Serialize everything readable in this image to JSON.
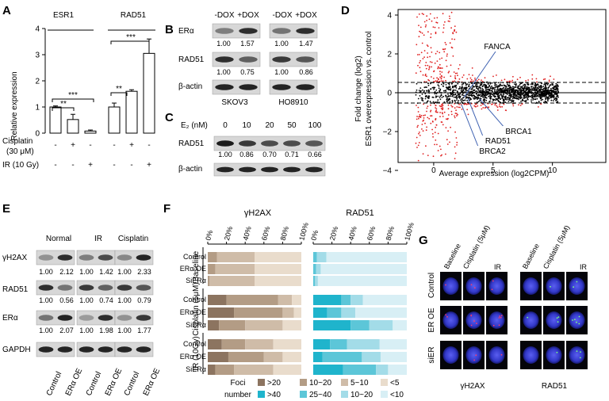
{
  "panel_letters": {
    "a": "A",
    "b": "B",
    "c": "C",
    "d": "D",
    "e": "E",
    "f": "F",
    "g": "G"
  },
  "panel_a": {
    "ylabel": "Relative expression",
    "groups": [
      "ESR1",
      "RAD51"
    ],
    "ticks": [
      "0",
      "1",
      "2",
      "3",
      "4"
    ],
    "row_labels": [
      "Cisplatin",
      "(30 μM)",
      "IR (10 Gy)"
    ],
    "cisplatin_signs": [
      "-",
      "+",
      "-",
      "-",
      "+",
      "-"
    ],
    "ir_signs": [
      "-",
      "-",
      "+",
      "-",
      "-",
      "+"
    ],
    "sig": [
      "**",
      "***",
      "**",
      "***"
    ]
  },
  "panel_b": {
    "conditions": [
      "-DOX",
      "+DOX",
      "-DOX",
      "+DOX"
    ],
    "rows": [
      "ERα",
      "RAD51",
      "β-actin"
    ],
    "era_values": [
      "1.00",
      "1.57",
      "1.00",
      "1.47"
    ],
    "rad51_values": [
      "1.00",
      "0.75",
      "1.00",
      "0.86"
    ],
    "cell_lines": [
      "SKOV3",
      "HO8910"
    ]
  },
  "panel_c": {
    "header": "E₂ (nM)",
    "doses": [
      "0",
      "10",
      "20",
      "50",
      "100"
    ],
    "rows": [
      "RAD51",
      "β-actin"
    ],
    "values": [
      "1.00",
      "0.86",
      "0.70",
      "0.71",
      "0.66"
    ]
  },
  "panel_d": {
    "ylabel1": "Fold change (log2)",
    "ylabel2": "ESR1 overexpression vs. control",
    "xlabel": "Average expression (log2CPM)",
    "xticks": [
      "0",
      "5",
      "10"
    ],
    "yticks": [
      "4",
      "2",
      "0",
      "−2",
      "−4"
    ],
    "genes": [
      "FANCA",
      "BRCA1",
      "RAD51",
      "BRCA2"
    ]
  },
  "panel_e": {
    "groups": [
      "Normal",
      "IR",
      "Cisplatin"
    ],
    "rows": [
      "γH2AX",
      "RAD51",
      "ERα",
      "GAPDH"
    ],
    "h2ax_values": [
      "1.00",
      "2.12",
      "1.00",
      "1.42",
      "1.00",
      "2.33"
    ],
    "rad51_values": [
      "1.00",
      "0.56",
      "1.00",
      "0.74",
      "1.00",
      "0.79"
    ],
    "era_values": [
      "1.00",
      "2.07",
      "1.00",
      "1.98",
      "1.00",
      "1.77"
    ],
    "xlabels": [
      "Control",
      "ERα OE",
      "Control",
      "ERα OE",
      "Control",
      "ERα OE"
    ]
  },
  "panel_f": {
    "titles": [
      "γH2AX",
      "RAD51"
    ],
    "ticks": [
      "0%",
      "20%",
      "40%",
      "60%",
      "80%",
      "100%"
    ],
    "row_labels": [
      "Control",
      "ERα OE",
      "SiERα",
      "Control",
      "ERα OE",
      "SiERα",
      "Control",
      "ERα OE",
      "SiERα"
    ],
    "group_labels": [
      "Baseline",
      "Cisplatin (5μM)",
      "IR (10Gy)"
    ],
    "legend_title": [
      "Foci",
      "number"
    ],
    "legend_h2ax": [
      ">20",
      "10~20",
      "5~10",
      "<5"
    ],
    "legend_rad51": [
      ">40",
      "25~40",
      "10~20",
      "<10"
    ],
    "colors_h2ax": [
      "#8c7460",
      "#b39c85",
      "#cfbca8",
      "#e9dccc"
    ],
    "colors_rad51": [
      "#1fb4cc",
      "#5cc6d8",
      "#a3dce8",
      "#d8eff5"
    ]
  },
  "chart_data": [
    {
      "type": "bar",
      "title": "",
      "categories": [
        "ESR1 control",
        "ESR1 cisplatin",
        "ESR1 IR",
        "RAD51 control",
        "RAD51 cisplatin",
        "RAD51 IR"
      ],
      "values": [
        1.0,
        0.52,
        0.08,
        1.0,
        1.6,
        3.05
      ],
      "errors": [
        0.04,
        0.2,
        0.04,
        0.15,
        0.06,
        0.55
      ],
      "ylabel": "Relative expression",
      "ylim": [
        0,
        4
      ]
    },
    {
      "type": "bar",
      "title": "γH2AX",
      "orientation": "horizontal",
      "stacked": true,
      "categories": [
        "Baseline Control",
        "Baseline ERα OE",
        "Baseline SiERα",
        "Cisplatin Control",
        "Cisplatin ERα OE",
        "Cisplatin SiERα",
        "IR Control",
        "IR ERα OE",
        "IR SiERα"
      ],
      "series": [
        {
          "name": ">20",
          "values": [
            0,
            0,
            0,
            20,
            28,
            12,
            15,
            22,
            8
          ]
        },
        {
          "name": "10~20",
          "values": [
            10,
            8,
            2,
            55,
            52,
            28,
            25,
            38,
            20
          ]
        },
        {
          "name": "5~10",
          "values": [
            40,
            42,
            48,
            15,
            12,
            40,
            30,
            20,
            42
          ]
        },
        {
          "name": "<5",
          "values": [
            50,
            50,
            50,
            10,
            8,
            20,
            30,
            20,
            30
          ]
        }
      ],
      "xlim": [
        0,
        100
      ]
    },
    {
      "type": "bar",
      "title": "RAD51",
      "orientation": "horizontal",
      "stacked": true,
      "categories": [
        "Baseline Control",
        "Baseline ERα OE",
        "Baseline SiERα",
        "Cisplatin Control",
        "Cisplatin ERα OE",
        "Cisplatin SiERα",
        "IR Control",
        "IR ERα OE",
        "IR SiERα"
      ],
      "series": [
        {
          "name": ">40",
          "values": [
            0,
            0,
            0,
            30,
            15,
            40,
            18,
            10,
            32
          ]
        },
        {
          "name": "25~40",
          "values": [
            4,
            3,
            2,
            10,
            15,
            20,
            18,
            42,
            35
          ]
        },
        {
          "name": "10~20",
          "values": [
            10,
            5,
            3,
            13,
            15,
            25,
            35,
            20,
            13
          ]
        },
        {
          "name": "<10",
          "values": [
            86,
            92,
            95,
            47,
            55,
            15,
            29,
            28,
            20
          ]
        }
      ],
      "xlim": [
        0,
        100
      ]
    }
  ],
  "panel_g": {
    "col_labels_left": [
      "Baseline",
      "Cisplatin (5μM)",
      "IR"
    ],
    "col_labels_right": [
      "Baseline",
      "Cisplatin (5μM)",
      "IR"
    ],
    "row_labels": [
      "Control",
      "ER OE",
      "siER"
    ],
    "bottom_labels": [
      "γH2AX",
      "RAD51"
    ]
  }
}
